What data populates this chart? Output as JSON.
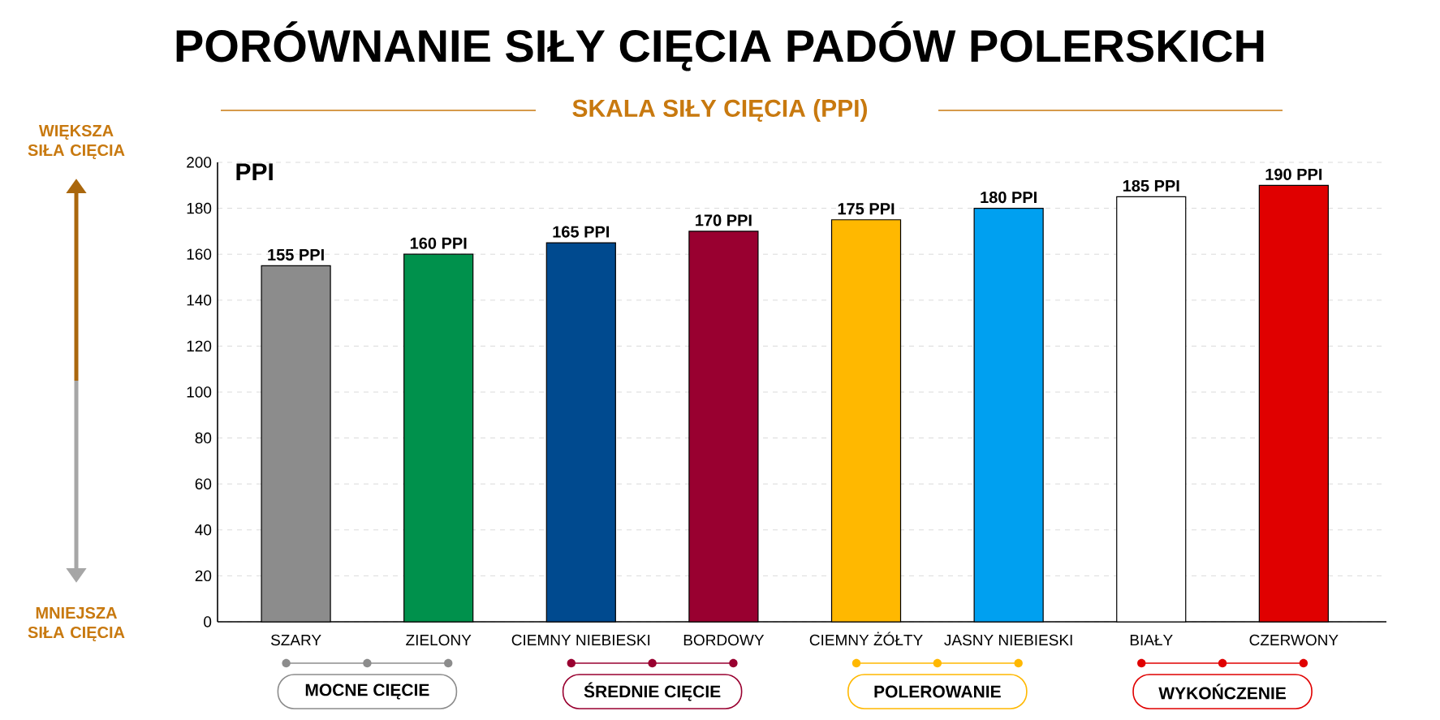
{
  "chart_data": {
    "type": "bar",
    "title": "PORÓWNANIE SIŁY CIĘCIA PADÓW POLERSKICH",
    "subtitle": "SKALA SIŁY CIĘCIA (PPI)",
    "ylabel": "PPI",
    "categories": [
      "SZARY",
      "ZIELONY",
      "CIEMNY NIEBIESKI",
      "BORDOWY",
      "CIEMNY ŻÓŁTY",
      "JASNY NIEBIESKI",
      "BIAŁY",
      "CZERWONY"
    ],
    "values": [
      155,
      160,
      165,
      170,
      175,
      180,
      185,
      190
    ],
    "value_labels": [
      "155 PPI",
      "160 PPI",
      "165 PPI",
      "170 PPI",
      "175 PPI",
      "180 PPI",
      "185 PPI",
      "190 PPI"
    ],
    "colors": [
      "#8c8c8c",
      "#00914c",
      "#004a8f",
      "#990030",
      "#ffb800",
      "#00a0f0",
      "#ffffff",
      "#e00000"
    ],
    "ylim": [
      0,
      200
    ],
    "yticks": [
      0,
      20,
      40,
      60,
      80,
      100,
      120,
      140,
      160,
      180,
      200
    ],
    "grid": "y",
    "annotations": [
      "WIĘKSZA SIŁA CIĘCIA",
      "MNIEJSZA SIŁA CIĘCIA",
      "MOCNE CIĘCIE",
      "ŚREDNIE CIĘCIE",
      "POLEROWANIE",
      "WYKOŃCZENIE"
    ]
  }
}
